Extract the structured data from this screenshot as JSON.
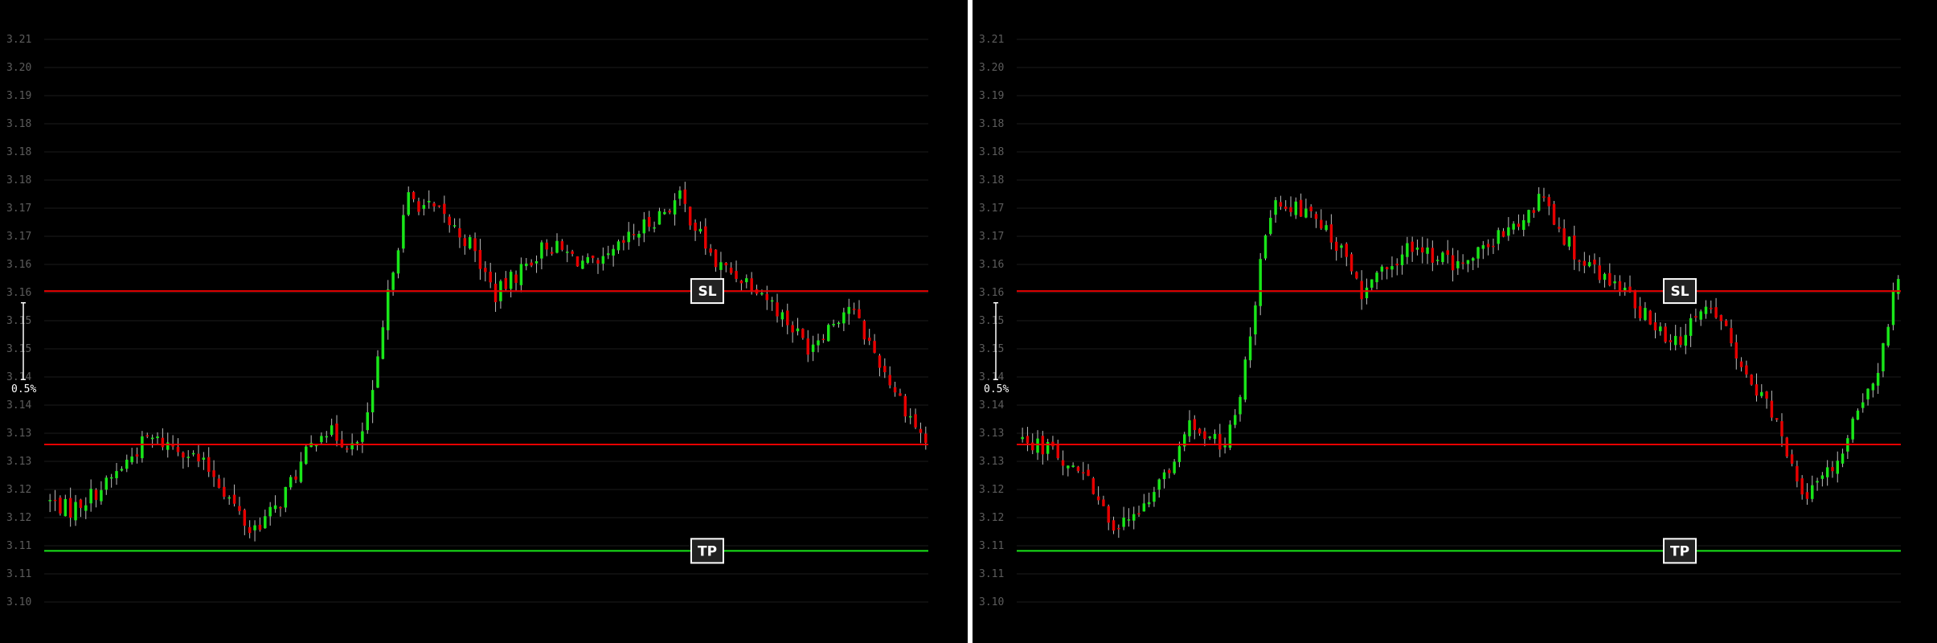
{
  "colors": {
    "background": "#000000",
    "grid": "#1c1c1c",
    "tick_text": "#5c5c5c",
    "bull": "#19e619",
    "bear": "#e60000",
    "wick": "#bdbdbd",
    "sl_line": "#e60000",
    "tp_line": "#19e619",
    "divider": "#ffffff"
  },
  "chart_data": [
    {
      "type": "candlestick",
      "title": "",
      "ylim": [
        3.1,
        3.21
      ],
      "ytick_labels": [
        "3.21",
        "3.20",
        "3.19",
        "3.18",
        "3.18",
        "3.18",
        "3.17",
        "3.17",
        "3.16",
        "3.16",
        "3.15",
        "3.15",
        "3.14",
        "3.14",
        "3.13",
        "3.13",
        "3.12",
        "3.12",
        "3.11",
        "3.11",
        "3.10"
      ],
      "grid": true,
      "levels": [
        {
          "name": "SL",
          "value": 3.1608,
          "color": "#e60000",
          "label": "SL"
        },
        {
          "name": "entry",
          "value": 3.1308,
          "color": "#e60000",
          "label": ""
        },
        {
          "name": "TP",
          "value": 3.11,
          "color": "#19e619",
          "label": "TP"
        }
      ],
      "scale_marker": {
        "label": "0.5%",
        "from": 3.1585,
        "to": 3.1435
      },
      "series_segments": [
        {
          "from": 3.12,
          "to": 3.118,
          "n": 5
        },
        {
          "from": 3.118,
          "to": 3.123,
          "n": 7
        },
        {
          "from": 3.123,
          "to": 3.132,
          "n": 8
        },
        {
          "from": 3.132,
          "to": 3.13,
          "n": 7
        },
        {
          "from": 3.13,
          "to": 3.125,
          "n": 6
        },
        {
          "from": 3.125,
          "to": 3.114,
          "n": 7
        },
        {
          "from": 3.114,
          "to": 3.118,
          "n": 5
        },
        {
          "from": 3.118,
          "to": 3.134,
          "n": 9
        },
        {
          "from": 3.134,
          "to": 3.13,
          "n": 7
        },
        {
          "from": 3.13,
          "to": 3.14,
          "n": 3
        },
        {
          "from": 3.14,
          "to": 3.166,
          "n": 4
        },
        {
          "from": 3.166,
          "to": 3.179,
          "n": 3
        },
        {
          "from": 3.179,
          "to": 3.176,
          "n": 6
        },
        {
          "from": 3.176,
          "to": 3.17,
          "n": 6
        },
        {
          "from": 3.17,
          "to": 3.16,
          "n": 5
        },
        {
          "from": 3.16,
          "to": 3.17,
          "n": 10
        },
        {
          "from": 3.17,
          "to": 3.165,
          "n": 10
        },
        {
          "from": 3.165,
          "to": 3.171,
          "n": 6
        },
        {
          "from": 3.171,
          "to": 3.179,
          "n": 10
        },
        {
          "from": 3.179,
          "to": 3.166,
          "n": 7
        },
        {
          "from": 3.166,
          "to": 3.162,
          "n": 8
        },
        {
          "from": 3.162,
          "to": 3.15,
          "n": 10
        },
        {
          "from": 3.15,
          "to": 3.158,
          "n": 8
        },
        {
          "from": 3.158,
          "to": 3.145,
          "n": 7
        },
        {
          "from": 3.145,
          "to": 3.131,
          "n": 8
        }
      ]
    },
    {
      "type": "candlestick",
      "title": "",
      "ylim": [
        3.1,
        3.21
      ],
      "ytick_labels": [
        "3.21",
        "3.20",
        "3.19",
        "3.18",
        "3.18",
        "3.18",
        "3.17",
        "3.17",
        "3.16",
        "3.16",
        "3.15",
        "3.15",
        "3.14",
        "3.14",
        "3.13",
        "3.13",
        "3.12",
        "3.12",
        "3.11",
        "3.11",
        "3.10"
      ],
      "grid": true,
      "levels": [
        {
          "name": "SL",
          "value": 3.1608,
          "color": "#e60000",
          "label": "SL"
        },
        {
          "name": "entry",
          "value": 3.1308,
          "color": "#e60000",
          "label": ""
        },
        {
          "name": "TP",
          "value": 3.11,
          "color": "#19e619",
          "label": "TP"
        }
      ],
      "scale_marker": {
        "label": "0.5%",
        "from": 3.1585,
        "to": 3.1435
      },
      "series_segments": [
        {
          "from": 3.132,
          "to": 3.13,
          "n": 7
        },
        {
          "from": 3.13,
          "to": 3.125,
          "n": 6
        },
        {
          "from": 3.125,
          "to": 3.114,
          "n": 7
        },
        {
          "from": 3.114,
          "to": 3.118,
          "n": 5
        },
        {
          "from": 3.118,
          "to": 3.134,
          "n": 9
        },
        {
          "from": 3.134,
          "to": 3.13,
          "n": 7
        },
        {
          "from": 3.13,
          "to": 3.14,
          "n": 3
        },
        {
          "from": 3.14,
          "to": 3.166,
          "n": 4
        },
        {
          "from": 3.166,
          "to": 3.179,
          "n": 3
        },
        {
          "from": 3.179,
          "to": 3.176,
          "n": 6
        },
        {
          "from": 3.176,
          "to": 3.17,
          "n": 6
        },
        {
          "from": 3.17,
          "to": 3.16,
          "n": 5
        },
        {
          "from": 3.16,
          "to": 3.17,
          "n": 10
        },
        {
          "from": 3.17,
          "to": 3.165,
          "n": 10
        },
        {
          "from": 3.165,
          "to": 3.171,
          "n": 6
        },
        {
          "from": 3.171,
          "to": 3.179,
          "n": 10
        },
        {
          "from": 3.179,
          "to": 3.166,
          "n": 7
        },
        {
          "from": 3.166,
          "to": 3.162,
          "n": 8
        },
        {
          "from": 3.162,
          "to": 3.15,
          "n": 10
        },
        {
          "from": 3.15,
          "to": 3.158,
          "n": 8
        },
        {
          "from": 3.158,
          "to": 3.145,
          "n": 7
        },
        {
          "from": 3.145,
          "to": 3.135,
          "n": 6
        },
        {
          "from": 3.135,
          "to": 3.12,
          "n": 6
        },
        {
          "from": 3.12,
          "to": 3.128,
          "n": 6
        },
        {
          "from": 3.128,
          "to": 3.146,
          "n": 8
        },
        {
          "from": 3.146,
          "to": 3.164,
          "n": 4
        }
      ]
    }
  ]
}
